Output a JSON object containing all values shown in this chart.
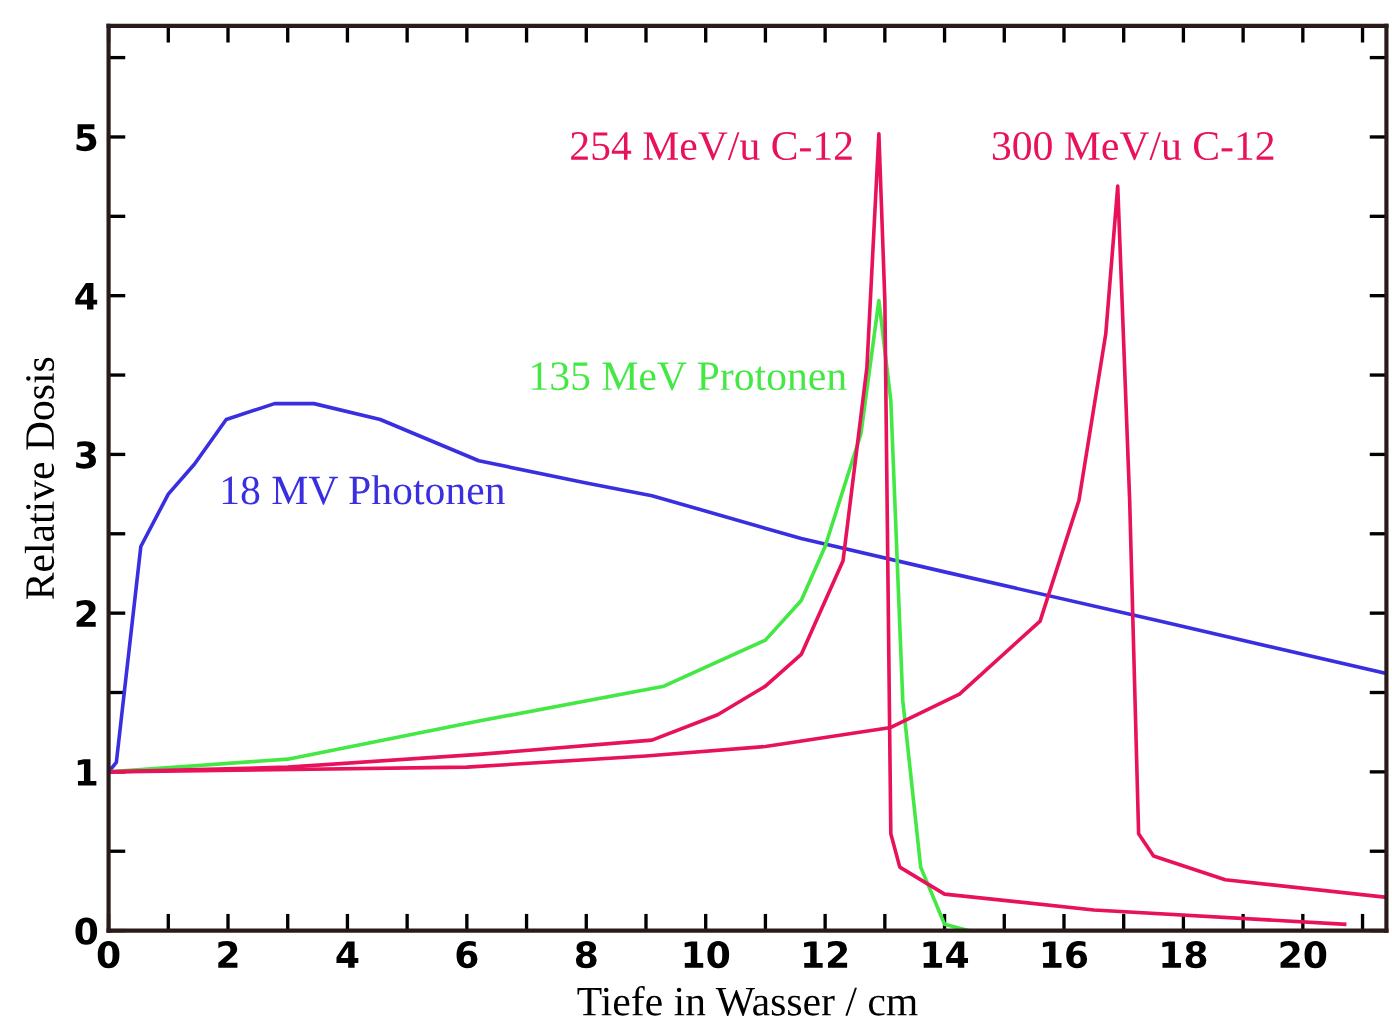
{
  "chart_data": {
    "type": "line",
    "xlabel": "Tiefe in Wasser / cm",
    "ylabel": "Relative Dosis",
    "xlim": [
      0,
      21.4
    ],
    "ylim": [
      0,
      5.7
    ],
    "xticks": [
      0,
      {
        "value": 1,
        "label": null
      },
      2,
      {
        "value": 3,
        "label": null
      },
      4,
      {
        "value": 5,
        "label": null
      },
      6,
      {
        "value": 7,
        "label": null
      },
      8,
      {
        "value": 9,
        "label": null
      },
      10,
      {
        "value": 11,
        "label": null
      },
      12,
      {
        "value": 13,
        "label": null
      },
      14,
      {
        "value": 15,
        "label": null
      },
      16,
      {
        "value": 17,
        "label": null
      },
      18,
      {
        "value": 19,
        "label": null
      },
      20,
      {
        "value": 21,
        "label": null
      }
    ],
    "yticks": [
      0,
      {
        "value": 0.5,
        "label": null
      },
      1,
      {
        "value": 1.5,
        "label": null
      },
      2,
      {
        "value": 2.5,
        "label": null
      },
      3,
      {
        "value": 3.5,
        "label": null
      },
      4,
      {
        "value": 4.5,
        "label": null
      },
      5,
      {
        "value": 5.5,
        "label": null
      }
    ],
    "grid": false,
    "legend": false,
    "marker": "none",
    "line_style": "solid",
    "series": [
      {
        "name": "18 MV Photonen",
        "color": "#3a2fe0",
        "x": [
          0,
          0.13,
          0.54,
          1,
          1.44,
          1.97,
          2.78,
          3.44,
          4.55,
          6.2,
          8,
          9.1,
          11.6,
          14,
          17.6,
          21.4
        ],
        "values": [
          1,
          1.06,
          2.42,
          2.75,
          2.94,
          3.22,
          3.32,
          3.32,
          3.22,
          2.96,
          2.82,
          2.74,
          2.47,
          2.26,
          1.95,
          1.62
        ]
      },
      {
        "name": "135 MeV Protonen",
        "color": "#44e844",
        "x": [
          0,
          3,
          6.2,
          9.3,
          11.0,
          11.6,
          12.0,
          12.6,
          12.9,
          13.1,
          13.3,
          13.6,
          14.0,
          14.4
        ],
        "values": [
          1,
          1.08,
          1.32,
          1.54,
          1.83,
          2.08,
          2.42,
          3.13,
          3.97,
          3.34,
          1.45,
          0.4,
          0.04,
          0
        ]
      },
      {
        "name": "254 MeV/u C-12",
        "color": "#e8115b",
        "x": [
          0,
          3,
          6.2,
          9.1,
          10.2,
          11.0,
          11.6,
          12.3,
          12.7,
          12.9,
          13.0,
          13.1,
          13.25,
          14.0,
          16.5,
          20.7
        ],
        "values": [
          1,
          1.03,
          1.11,
          1.2,
          1.36,
          1.54,
          1.74,
          2.33,
          3.55,
          5.02,
          3.97,
          0.61,
          0.4,
          0.23,
          0.13,
          0.04
        ]
      },
      {
        "name": "300 MeV/u C-12",
        "color": "#e8115b",
        "x": [
          0,
          6,
          9,
          11,
          13.1,
          14.25,
          15.6,
          16.25,
          16.7,
          16.9,
          17.1,
          17.25,
          17.5,
          18.7,
          21.4
        ],
        "values": [
          1,
          1.03,
          1.1,
          1.16,
          1.28,
          1.49,
          1.95,
          2.71,
          3.76,
          4.69,
          2.71,
          0.61,
          0.47,
          0.32,
          0.21
        ]
      }
    ]
  }
}
